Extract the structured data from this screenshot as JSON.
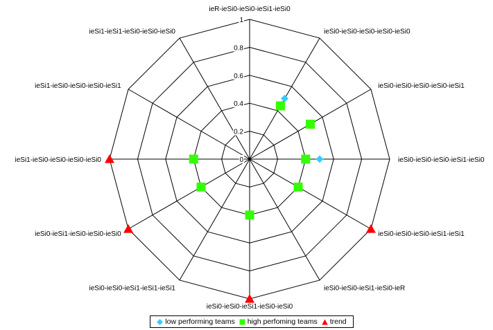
{
  "chart_data": {
    "type": "radar",
    "title": "",
    "categories": [
      "ieR-ieSi0-ieSi0-ieSi1-ieSi0",
      "ieSi0-ieSi0-ieSi0-ieSi0-ieSi0",
      "ieSi0-ieSi0-ieSi0-ieSi0-ieSi1",
      "ieSi0-ieSi0-ieSi0-ieSi1-ieSi0",
      "ieSi0-ieSi0-ieSi0-ieSi1-ieSi1",
      "ieSi0-ieSi0-ieSi1-ieSi0-ieR",
      "ieSi0-ieSi0-ieSi1-ieSi0-ieSi0",
      "ieSi0-ieSi0-ieSi1-ieSi1-ieSi1",
      "ieSi0-ieSi1-ieSi0-ieSi0-ieSi0",
      "ieSi1-ieSi0-ieSi0-ieSi0-ieSi0",
      "ieSi1-ieSi0-ieSi0-ieSi0-ieSi1",
      "ieSi1-ieSi1-ieSi0-ieSi0-ieSi0"
    ],
    "rlim": [
      0,
      1
    ],
    "ticks": [
      0,
      0.2,
      0.4,
      0.6,
      0.8,
      1
    ],
    "tick_labels": [
      "0",
      "0.2",
      "0.4",
      "0.6",
      "0.8",
      "1"
    ],
    "grid": true,
    "legend_position": "bottom",
    "series": [
      {
        "name": "low performing teams",
        "marker": "diamond",
        "color": "#33CCFF",
        "values": [
          null,
          0.5,
          null,
          0.5,
          null,
          null,
          null,
          null,
          null,
          null,
          null,
          null
        ]
      },
      {
        "name": "high perfoming teams",
        "marker": "square",
        "color": "#33FF00",
        "values": [
          null,
          0.44,
          0.5,
          0.4,
          0.4,
          null,
          0.4,
          null,
          0.4,
          0.4,
          null,
          null
        ]
      },
      {
        "name": "trend",
        "marker": "triangle",
        "color": "#FF0000",
        "values": [
          null,
          null,
          null,
          null,
          1,
          null,
          1,
          null,
          1,
          1,
          null,
          null
        ]
      }
    ]
  }
}
